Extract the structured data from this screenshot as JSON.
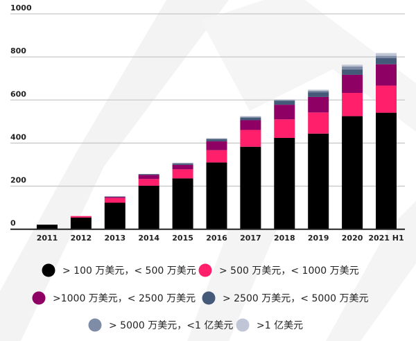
{
  "chart_data": {
    "type": "stacked-bar",
    "title": "",
    "xlabel": "",
    "ylabel": "",
    "ylim": [
      0,
      1000
    ],
    "yticks": [
      0,
      200,
      400,
      600,
      800,
      1000
    ],
    "grid": true,
    "legend_position": "bottom",
    "categories": [
      "2011",
      "2012",
      "2013",
      "2014",
      "2015",
      "2016",
      "2017",
      "2018",
      "2019",
      "2020",
      "2021 H1"
    ],
    "series": [
      {
        "name": "> 100 万美元，< 500 万美元",
        "color": "#000000",
        "values": [
          21,
          54,
          123,
          202,
          236,
          310,
          383,
          424,
          444,
          525,
          541
        ]
      },
      {
        "name": "> 500 万美元，< 1000 万美元",
        "color": "#ff1f6b",
        "values": [
          0,
          7,
          22,
          31,
          42,
          57,
          78,
          86,
          98,
          108,
          126
        ]
      },
      {
        "name": ">1000 万美元，< 2500 万美元",
        "color": "#8e0063",
        "values": [
          0,
          0,
          5,
          19,
          21,
          41,
          45,
          68,
          72,
          84,
          99
        ]
      },
      {
        "name": "> 2500 万美元，< 5000 万美元",
        "color": "#455a78",
        "values": [
          0,
          0,
          2,
          4,
          6,
          10,
          12,
          18,
          22,
          25,
          28
        ]
      },
      {
        "name": "> 5000 万美元，<1 亿美元",
        "color": "#7f8ca6",
        "values": [
          0,
          0,
          0,
          0,
          2,
          3,
          4,
          4,
          7,
          14,
          11
        ]
      },
      {
        "name": ">1 亿美元",
        "color": "#c0c6d6",
        "values": [
          0,
          0,
          0,
          0,
          2,
          2,
          3,
          3,
          5,
          8,
          13
        ]
      }
    ]
  }
}
